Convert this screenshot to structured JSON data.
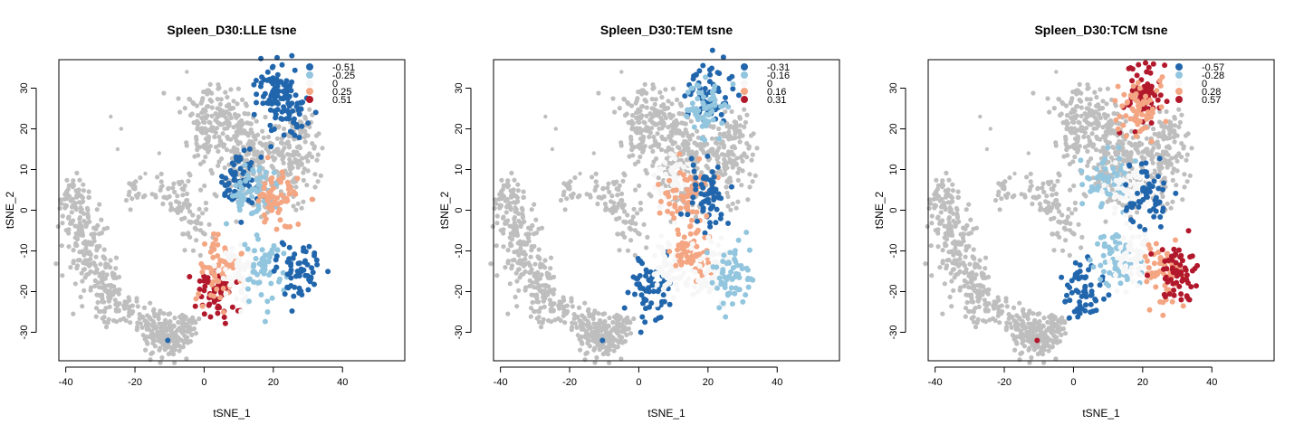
{
  "chart_data": [
    {
      "type": "scatter",
      "title": "Spleen_D30:LLE tsne",
      "xlabel": "tSNE_1",
      "ylabel": "tSNE_2",
      "xlim": [
        -42,
        58
      ],
      "ylim": [
        -37,
        37
      ],
      "xticks": [
        -40,
        -20,
        0,
        20,
        40
      ],
      "yticks": [
        -30,
        -20,
        -10,
        0,
        10,
        20,
        30
      ],
      "legend": {
        "position": "top-right",
        "labels": [
          "-0.51",
          "-0.25",
          "0",
          "0.25",
          "0.51"
        ],
        "colors": [
          "#2166ac",
          "#92c5de",
          "#f7f7f7",
          "#f4a582",
          "#b2182b"
        ]
      },
      "marker": {
        "x": -10.5,
        "y": -32,
        "color": "#2166ac"
      },
      "clusters": [
        {
          "x": 20.5,
          "y": 29,
          "color": "#2166ac"
        },
        {
          "x": 24,
          "y": 24.5,
          "color": "#2166ac"
        },
        {
          "x": 10,
          "y": 7,
          "color": "#2166ac"
        },
        {
          "x": 14,
          "y": 5,
          "color": "#92c5de"
        },
        {
          "x": 21,
          "y": 3,
          "color": "#f4a582"
        },
        {
          "x": 3,
          "y": -20,
          "color": "#b2182b"
        },
        {
          "x": 4,
          "y": -14,
          "color": "#f4a582"
        },
        {
          "x": 10,
          "y": -15,
          "color": "#f7f7f7"
        },
        {
          "x": 17,
          "y": -14,
          "color": "#92c5de"
        },
        {
          "x": 27,
          "y": -15,
          "color": "#2166ac"
        }
      ]
    },
    {
      "type": "scatter",
      "title": "Spleen_D30:TEM tsne",
      "xlabel": "tSNE_1",
      "ylabel": "tSNE_2",
      "xlim": [
        -42,
        58
      ],
      "ylim": [
        -37,
        37
      ],
      "xticks": [
        -40,
        -20,
        0,
        20,
        40
      ],
      "yticks": [
        -30,
        -20,
        -10,
        0,
        10,
        20,
        30
      ],
      "legend": {
        "position": "top-right",
        "labels": [
          "-0.31",
          "-0.16",
          "0",
          "0.16",
          "0.31"
        ],
        "colors": [
          "#2166ac",
          "#92c5de",
          "#f7f7f7",
          "#f4a582",
          "#b2182b"
        ]
      },
      "marker": {
        "x": -10.5,
        "y": -32,
        "color": "#2166ac"
      },
      "clusters": [
        {
          "x": 20.5,
          "y": 29,
          "color": "#2166ac"
        },
        {
          "x": 19,
          "y": 25,
          "color": "#92c5de"
        },
        {
          "x": 10,
          "y": 7,
          "color": "#f7f7f7"
        },
        {
          "x": 14,
          "y": 5,
          "color": "#f4a582"
        },
        {
          "x": 20,
          "y": 4,
          "color": "#2166ac"
        },
        {
          "x": 3,
          "y": -20,
          "color": "#2166ac"
        },
        {
          "x": 10,
          "y": -14,
          "color": "#f7f7f7"
        },
        {
          "x": 15,
          "y": -10,
          "color": "#f4a582"
        },
        {
          "x": 22,
          "y": -15,
          "color": "#f7f7f7"
        },
        {
          "x": 27,
          "y": -17,
          "color": "#92c5de"
        }
      ]
    },
    {
      "type": "scatter",
      "title": "Spleen_D30:TCM tsne",
      "xlabel": "tSNE_1",
      "ylabel": "tSNE_2",
      "xlim": [
        -42,
        58
      ],
      "ylim": [
        -37,
        37
      ],
      "xticks": [
        -40,
        -20,
        0,
        20,
        40
      ],
      "yticks": [
        -30,
        -20,
        -10,
        0,
        10,
        20,
        30
      ],
      "legend": {
        "position": "top-right",
        "labels": [
          "-0.57",
          "-0.28",
          "0",
          "0.28",
          "0.57"
        ],
        "colors": [
          "#2166ac",
          "#92c5de",
          "#f7f7f7",
          "#f4a582",
          "#b2182b"
        ]
      },
      "marker": {
        "x": -10.5,
        "y": -32,
        "color": "#b2182b"
      },
      "clusters": [
        {
          "x": 20.5,
          "y": 29,
          "color": "#b2182b"
        },
        {
          "x": 19,
          "y": 25,
          "color": "#f4a582"
        },
        {
          "x": 10,
          "y": 7,
          "color": "#92c5de"
        },
        {
          "x": 16,
          "y": 4,
          "color": "#f7f7f7"
        },
        {
          "x": 21,
          "y": 4,
          "color": "#2166ac"
        },
        {
          "x": 3,
          "y": -20,
          "color": "#2166ac"
        },
        {
          "x": 12,
          "y": -13,
          "color": "#92c5de"
        },
        {
          "x": 18,
          "y": -12,
          "color": "#f7f7f7"
        },
        {
          "x": 25,
          "y": -15,
          "color": "#f4a582"
        },
        {
          "x": 30,
          "y": -15,
          "color": "#b2182b"
        }
      ]
    }
  ]
}
